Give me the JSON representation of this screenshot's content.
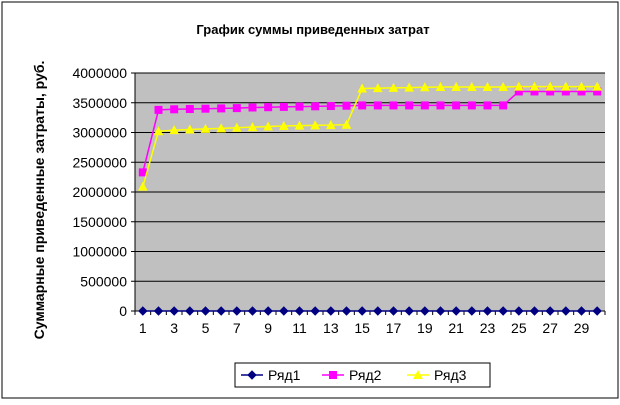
{
  "chart_data": {
    "type": "line",
    "title": "График суммы приведенных затрат",
    "ylabel": "Суммарные приведенные затраты, руб.",
    "xlabel": "",
    "x": [
      1,
      2,
      3,
      4,
      5,
      6,
      7,
      8,
      9,
      10,
      11,
      12,
      13,
      14,
      15,
      16,
      17,
      18,
      19,
      20,
      21,
      22,
      23,
      24,
      25,
      26,
      27,
      28,
      29,
      30
    ],
    "x_tick_labels": [
      "1",
      "3",
      "5",
      "7",
      "9",
      "11",
      "13",
      "15",
      "17",
      "19",
      "21",
      "23",
      "25",
      "27",
      "29"
    ],
    "y_ticks": [
      0,
      500000,
      1000000,
      1500000,
      2000000,
      2500000,
      3000000,
      3500000,
      4000000
    ],
    "y_tick_labels": [
      "0",
      "500000",
      "1000000",
      "1500000",
      "2000000",
      "2500000",
      "3000000",
      "3500000",
      "4000000"
    ],
    "ylim": [
      0,
      4000000
    ],
    "grid": "horizontal",
    "plot_background": "#c0c0c0",
    "legend_position": "bottom",
    "series": [
      {
        "name": "Ряд1",
        "color": "#000080",
        "marker": "diamond",
        "values": [
          0,
          0,
          0,
          0,
          0,
          0,
          0,
          0,
          0,
          0,
          0,
          0,
          0,
          0,
          0,
          0,
          0,
          0,
          0,
          0,
          0,
          0,
          0,
          0,
          0,
          0,
          0,
          0,
          0,
          0
        ]
      },
      {
        "name": "Ряд2",
        "color": "#ff00ff",
        "marker": "square",
        "values": [
          2330000,
          3380000,
          3390000,
          3395000,
          3400000,
          3405000,
          3410000,
          3420000,
          3425000,
          3430000,
          3435000,
          3440000,
          3445000,
          3450000,
          3455000,
          3455000,
          3455000,
          3455000,
          3455000,
          3455000,
          3455000,
          3455000,
          3455000,
          3455000,
          3690000,
          3690000,
          3690000,
          3690000,
          3690000,
          3690000
        ]
      },
      {
        "name": "Ряд3",
        "color": "#ffff00",
        "marker": "triangle",
        "values": [
          2090000,
          3020000,
          3040000,
          3050000,
          3060000,
          3070000,
          3080000,
          3090000,
          3100000,
          3110000,
          3115000,
          3120000,
          3125000,
          3130000,
          3740000,
          3745000,
          3750000,
          3755000,
          3760000,
          3765000,
          3765000,
          3765000,
          3765000,
          3765000,
          3770000,
          3770000,
          3770000,
          3770000,
          3770000,
          3770000
        ]
      }
    ]
  }
}
